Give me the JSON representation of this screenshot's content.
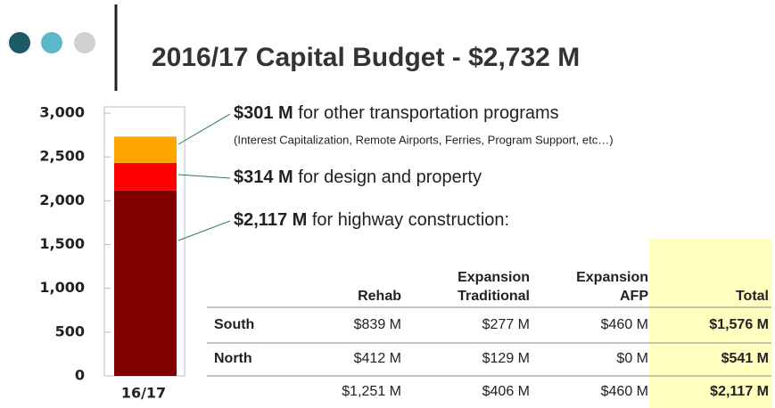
{
  "title": "2016/17 Capital Budget - $2,732 M",
  "chart_data": {
    "type": "stacked-bar",
    "categories": [
      "16/17"
    ],
    "series": [
      {
        "color": "#800000",
        "values": [
          2117
        ],
        "value_labels": [
          "$2,117 M"
        ],
        "label_text": " for highway construction:"
      },
      {
        "color": "#ff0000",
        "values": [
          314
        ],
        "value_labels": [
          "$314 M"
        ],
        "label_text": " for design and property"
      },
      {
        "color": "#ffa500",
        "values": [
          301
        ],
        "value_labels": [
          "$301 M"
        ],
        "label_text": " for other transportation programs",
        "note": "(Interest Capitalization, Remote Airports, Ferries, Program Support, etc…)"
      }
    ],
    "ylim": [
      0,
      3000
    ],
    "yticks": [
      0,
      500,
      {
        "value": 1000,
        "label": "1,000"
      },
      {
        "value": 1500,
        "label": "1,500"
      },
      {
        "value": 2000,
        "label": "2,000"
      },
      {
        "value": 2500,
        "label": "2,500"
      },
      {
        "value": 3000,
        "label": "3,000"
      }
    ]
  },
  "table": {
    "columns": [
      [
        "Rehab"
      ],
      [
        "Expansion",
        "Traditional"
      ],
      [
        "Expansion",
        "AFP"
      ],
      [
        "Total"
      ]
    ],
    "rows": [
      {
        "label": "South",
        "cells": [
          "$839 M",
          "$277 M",
          "$460 M",
          "$1,576 M"
        ]
      },
      {
        "label": "North",
        "cells": [
          "$412 M",
          "$129 M",
          "$0 M",
          "$541 M"
        ]
      },
      {
        "cells": [
          "$1,251 M",
          "$406 M",
          "$460 M",
          "$2,117 M"
        ]
      }
    ]
  }
}
